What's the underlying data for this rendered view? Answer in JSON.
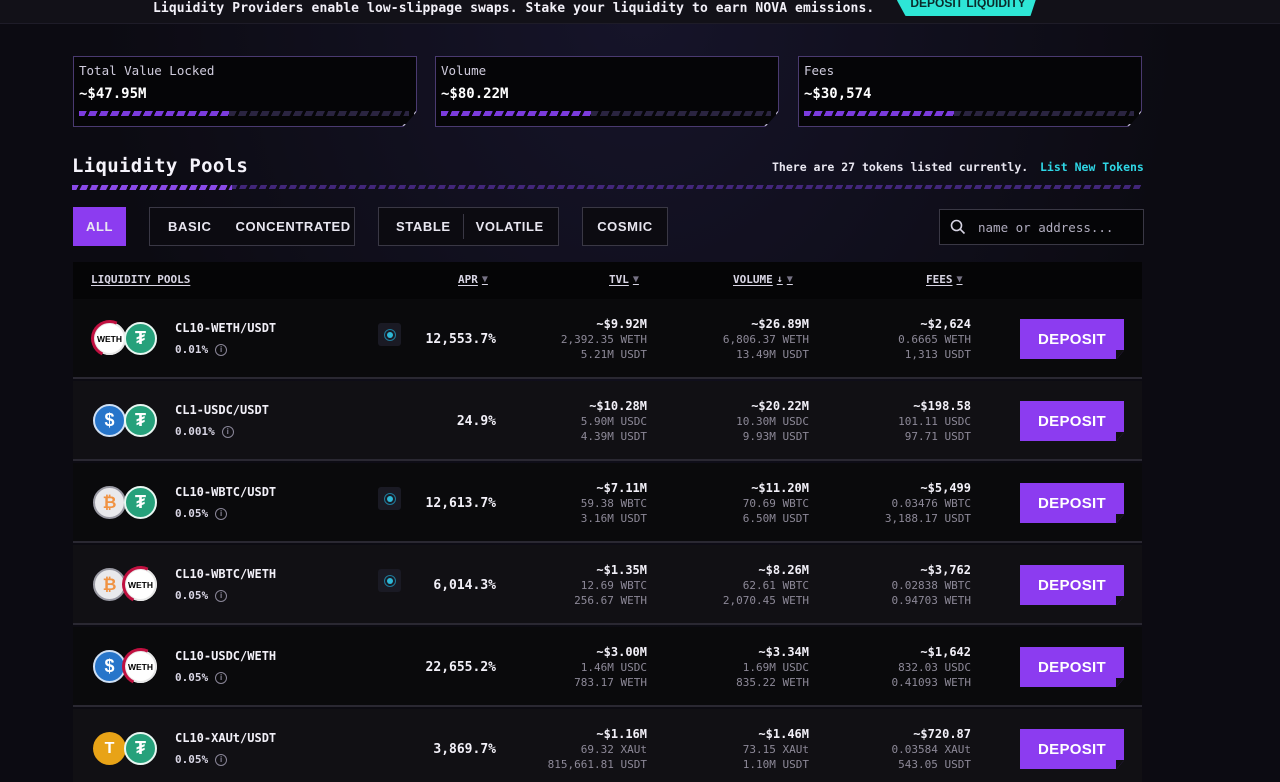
{
  "banner": {
    "text": "Liquidity Providers enable low-slippage swaps. Stake your liquidity to earn NOVA emissions.",
    "button": "DEPOSIT LIQUIDITY"
  },
  "stats": [
    {
      "label": "Total Value Locked",
      "value": "~$47.95M"
    },
    {
      "label": "Volume",
      "value": "~$80.22M"
    },
    {
      "label": "Fees",
      "value": "~$30,574"
    }
  ],
  "pools": {
    "title": "Liquidity Pools",
    "tokens_note": "There are 27 tokens listed currently.",
    "list_link": "List New Tokens"
  },
  "filters": {
    "all": "ALL",
    "basic": "BASIC",
    "concentrated": "CONCENTRATED",
    "stable": "STABLE",
    "volatile": "VOLATILE",
    "cosmic": "COSMIC"
  },
  "search": {
    "placeholder": "name or address..."
  },
  "table": {
    "headers": {
      "pools": "LIQUIDITY POOLS",
      "apr": "APR",
      "tvl": "TVL",
      "volume": "VOLUME",
      "fees": "FEES"
    },
    "deposit_label": "DEPOSIT",
    "rows": [
      {
        "pair": "CL10-WETH/USDT",
        "fee": "0.01%",
        "apr": "12,553.7%",
        "tvl": "~$9.92M",
        "tvl_a": "2,392.35 WETH",
        "tvl_b": "5.21M USDT",
        "vol": "~$26.89M",
        "vol_a": "6,806.37 WETH",
        "vol_b": "13.49M USDT",
        "fees": "~$2,624",
        "fees_a": "0.6665 WETH",
        "fees_b": "1,313 USDT"
      },
      {
        "pair": "CL1-USDC/USDT",
        "fee": "0.001%",
        "apr": "24.9%",
        "tvl": "~$10.28M",
        "tvl_a": "5.90M USDC",
        "tvl_b": "4.39M USDT",
        "vol": "~$20.22M",
        "vol_a": "10.30M USDC",
        "vol_b": "9.93M USDT",
        "fees": "~$198.58",
        "fees_a": "101.11 USDC",
        "fees_b": "97.71 USDT"
      },
      {
        "pair": "CL10-WBTC/USDT",
        "fee": "0.05%",
        "apr": "12,613.7%",
        "tvl": "~$7.11M",
        "tvl_a": "59.38 WBTC",
        "tvl_b": "3.16M USDT",
        "vol": "~$11.20M",
        "vol_a": "70.69 WBTC",
        "vol_b": "6.50M USDT",
        "fees": "~$5,499",
        "fees_a": "0.03476 WBTC",
        "fees_b": "3,188.17 USDT"
      },
      {
        "pair": "CL10-WBTC/WETH",
        "fee": "0.05%",
        "apr": "6,014.3%",
        "tvl": "~$1.35M",
        "tvl_a": "12.69 WBTC",
        "tvl_b": "256.67 WETH",
        "vol": "~$8.26M",
        "vol_a": "62.61 WBTC",
        "vol_b": "2,070.45 WETH",
        "fees": "~$3,762",
        "fees_a": "0.02838 WBTC",
        "fees_b": "0.94703 WETH"
      },
      {
        "pair": "CL10-USDC/WETH",
        "fee": "0.05%",
        "apr": "22,655.2%",
        "tvl": "~$3.00M",
        "tvl_a": "1.46M USDC",
        "tvl_b": "783.17 WETH",
        "vol": "~$3.34M",
        "vol_a": "1.69M USDC",
        "vol_b": "835.22 WETH",
        "fees": "~$1,642",
        "fees_a": "832.03 USDC",
        "fees_b": "0.41093 WETH"
      },
      {
        "pair": "CL10-XAUt/USDT",
        "fee": "0.05%",
        "apr": "3,869.7%",
        "tvl": "~$1.16M",
        "tvl_a": "69.32 XAUt",
        "tvl_b": "815,661.81 USDT",
        "vol": "~$1.46M",
        "vol_a": "73.15 XAUt",
        "vol_b": "1.10M USDT",
        "fees": "~$720.87",
        "fees_a": "0.03584 XAUt",
        "fees_b": "543.05 USDT"
      }
    ]
  }
}
